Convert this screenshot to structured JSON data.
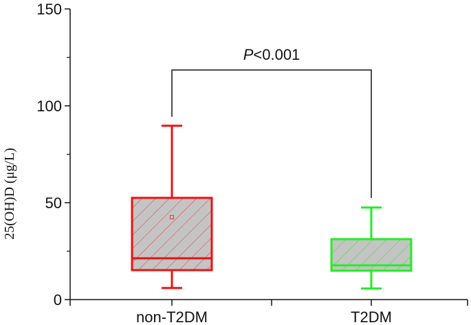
{
  "chart_data": {
    "type": "box",
    "title": "",
    "xlabel": "",
    "ylabel": "25(OH)D (μg/L)",
    "ylim": [
      0,
      150
    ],
    "yticks": [
      0,
      50,
      100,
      150
    ],
    "yminor_ticks": [
      25,
      75,
      125
    ],
    "grid": false,
    "categories": [
      "non-T2DM",
      "T2DM"
    ],
    "series": [
      {
        "name": "non-T2DM",
        "color": "#ee1111",
        "whisker_low": 6,
        "q1": 15.2,
        "median": 21.3,
        "q3": 52.5,
        "whisker_high": 89.7,
        "mean": 42.5
      },
      {
        "name": "T2DM",
        "color": "#22ee22",
        "whisker_low": 5.7,
        "q1": 14.9,
        "median": 17.7,
        "q3": 31.2,
        "whisker_high": 47.5
      }
    ],
    "annotations": [
      {
        "type": "significance-bracket",
        "between": [
          "non-T2DM",
          "T2DM"
        ],
        "y": 118.5,
        "text_italic": "P",
        "text_rest": "<0.001"
      }
    ]
  },
  "labels": {
    "ylabel": "25(OH)D (μg/L)",
    "p_italic": "P",
    "p_rest": "<0.001",
    "yticks": [
      "0",
      "50",
      "100",
      "150"
    ],
    "xticks": [
      "non-T2DM",
      "T2DM"
    ]
  }
}
